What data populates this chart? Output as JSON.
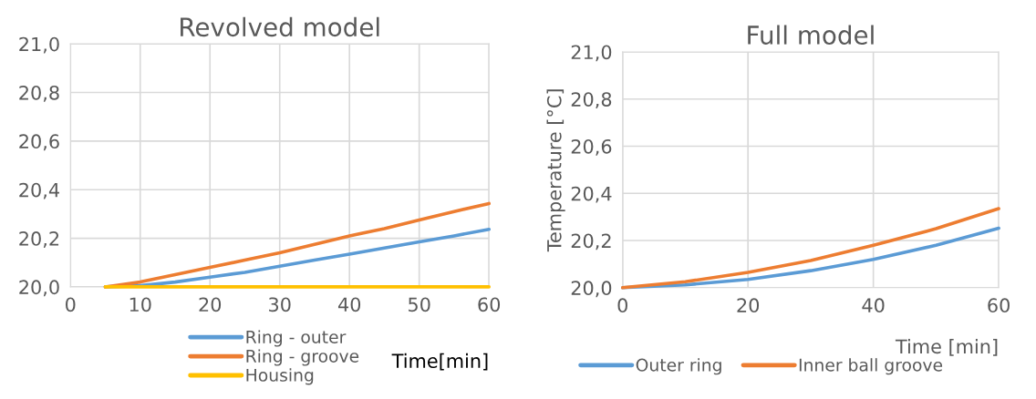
{
  "chart_data": [
    {
      "type": "line",
      "title": "Revolved model",
      "xlabel": "Time[min]",
      "x": [
        5,
        10,
        15,
        20,
        25,
        30,
        35,
        40,
        45,
        50,
        55,
        60
      ],
      "series": [
        {
          "name": "Ring - outer",
          "color": "#5b9bd5",
          "values": [
            20.0,
            20.005,
            20.02,
            20.04,
            20.06,
            20.085,
            20.11,
            20.135,
            20.16,
            20.185,
            20.21,
            20.237
          ]
        },
        {
          "name": "Ring - groove",
          "color": "#ed7d31",
          "values": [
            20.0,
            20.02,
            20.05,
            20.08,
            20.11,
            20.14,
            20.175,
            20.21,
            20.24,
            20.275,
            20.31,
            20.343
          ]
        },
        {
          "name": "Housing",
          "color": "#ffc000",
          "values": [
            20.0,
            20.0,
            20.0,
            20.0,
            20.0,
            20.0,
            20.0,
            20.0,
            20.0,
            20.0,
            20.0,
            20.0
          ]
        }
      ],
      "xlim": [
        0,
        60
      ],
      "xticks": [
        0,
        10,
        20,
        30,
        40,
        50,
        60
      ],
      "ylim": [
        20.0,
        21.0
      ],
      "yticks": [
        {
          "value": 20.0,
          "label": "20,0"
        },
        {
          "value": 20.2,
          "label": "20,2"
        },
        {
          "value": 20.4,
          "label": "20,4"
        },
        {
          "value": 20.6,
          "label": "20,6"
        },
        {
          "value": 20.8,
          "label": "20,8"
        },
        {
          "value": 21.0,
          "label": "21,0"
        }
      ],
      "grid": true,
      "legend": "bottom",
      "marker": "none",
      "line_style": "solid"
    },
    {
      "type": "line",
      "title": "Full model",
      "xlabel": "Time [min]",
      "ylabel": "Temperature [°C]",
      "x": [
        0,
        10,
        20,
        30,
        40,
        50,
        60
      ],
      "series": [
        {
          "name": "Outer ring",
          "color": "#5b9bd5",
          "values": [
            20.0,
            20.012,
            20.035,
            20.072,
            20.12,
            20.18,
            20.252
          ]
        },
        {
          "name": "Inner ball groove",
          "color": "#ed7d31",
          "values": [
            20.0,
            20.025,
            20.065,
            20.115,
            20.18,
            20.25,
            20.335
          ]
        }
      ],
      "xlim": [
        0,
        60
      ],
      "xticks": [
        0,
        20,
        40,
        60
      ],
      "ylim": [
        20.0,
        21.0
      ],
      "yticks": [
        {
          "value": 20.0,
          "label": "20,0"
        },
        {
          "value": 20.2,
          "label": "20,2"
        },
        {
          "value": 20.4,
          "label": "20,4"
        },
        {
          "value": 20.6,
          "label": "20,6"
        },
        {
          "value": 20.8,
          "label": "20,8"
        },
        {
          "value": 21.0,
          "label": "21,0"
        }
      ],
      "grid": true,
      "legend": "bottom",
      "marker": "none",
      "line_style": "solid"
    }
  ]
}
